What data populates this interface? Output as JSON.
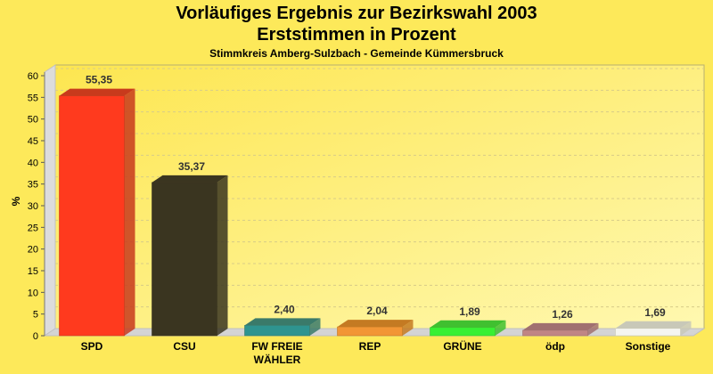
{
  "chart_data": {
    "type": "bar",
    "title": "Vorläufiges Ergebnis zur Bezirkswahl 2003",
    "title2": "Erststimmen in Prozent",
    "subtitle": "Stimmkreis Amberg-Sulzbach - Gemeinde Kümmersbruck",
    "ylabel": "%",
    "xlabel": "",
    "ylim": [
      0,
      60
    ],
    "yticks": [
      0,
      5,
      10,
      15,
      20,
      25,
      30,
      35,
      40,
      45,
      50,
      55,
      60
    ],
    "grid": true,
    "categories": [
      "SPD",
      "CSU",
      "FW FREIE WÄHLER",
      "REP",
      "GRÜNE",
      "ödp",
      "Sonstige"
    ],
    "category_lines": [
      [
        "SPD"
      ],
      [
        "CSU"
      ],
      [
        "FW FREIE",
        "WÄHLER"
      ],
      [
        "REP"
      ],
      [
        "GRÜNE"
      ],
      [
        "ödp"
      ],
      [
        "Sonstige"
      ]
    ],
    "values": [
      55.35,
      35.37,
      2.4,
      2.04,
      1.89,
      1.26,
      1.69
    ],
    "value_labels": [
      "55,35",
      "35,37",
      "2,40",
      "2,04",
      "1,89",
      "1,26",
      "1,69"
    ],
    "colors": [
      "#ff3a1e",
      "#3a3520",
      "#2e9490",
      "#f29535",
      "#38f033",
      "#c08585",
      "#f5f5f0"
    ],
    "top_colors": [
      "#c83a1c",
      "#3a3520",
      "#3a7a6a",
      "#c47a22",
      "#40c030",
      "#a07070",
      "#c8c8b8"
    ]
  }
}
